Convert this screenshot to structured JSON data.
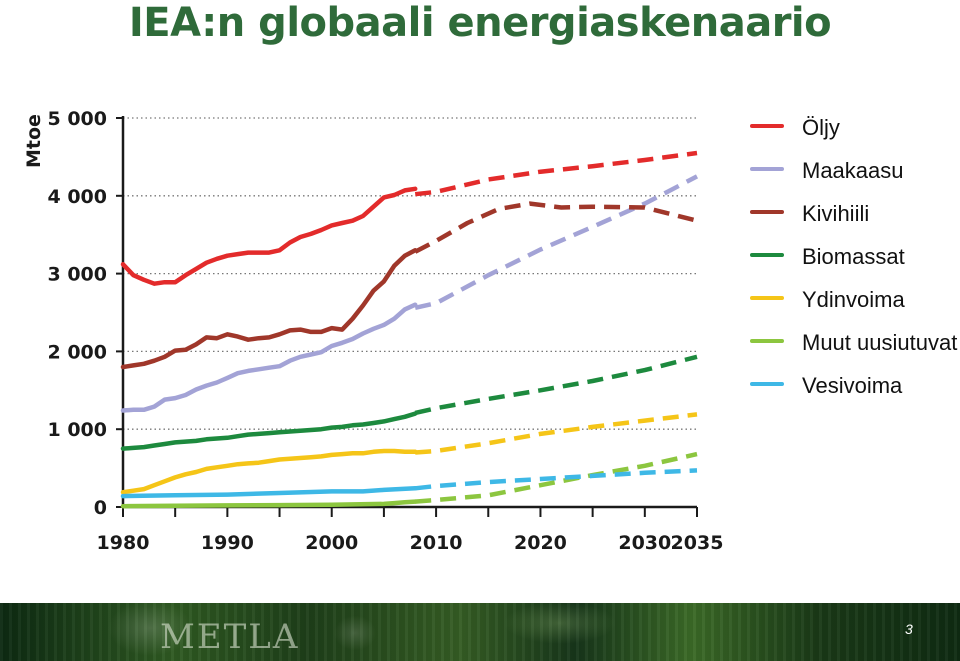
{
  "slide": {
    "title": "IEA:n globaali energiaskenaario",
    "logo_text": "METLA",
    "page_number": "3"
  },
  "chart_data": {
    "type": "line",
    "title": "IEA:n globaali energiaskenaario",
    "xlabel": "",
    "ylabel": "Mtoe",
    "xlim": [
      1980,
      2035
    ],
    "ylim": [
      0,
      5000
    ],
    "xticks": [
      1980,
      1990,
      2000,
      2010,
      2020,
      2030,
      2035
    ],
    "xtick_labels": [
      "1980",
      "1990",
      "2000",
      "2010",
      "2020",
      "2030",
      "2035"
    ],
    "yticks": [
      0,
      1000,
      2000,
      3000,
      4000,
      5000
    ],
    "ytick_labels": [
      "0",
      "1 000",
      "2 000",
      "3 000",
      "4 000",
      "5 000"
    ],
    "grid": {
      "y_dotted": true
    },
    "legend_position": "right",
    "historical_until": 2008,
    "series": [
      {
        "name": "Öljy",
        "color": "#e32b2b",
        "historical": {
          "x": [
            1980,
            1981,
            1982,
            1983,
            1984,
            1985,
            1986,
            1987,
            1988,
            1989,
            1990,
            1991,
            1992,
            1993,
            1994,
            1995,
            1996,
            1997,
            1998,
            1999,
            2000,
            2001,
            2002,
            2003,
            2004,
            2005,
            2006,
            2007,
            2008
          ],
          "y": [
            3120,
            2980,
            2920,
            2870,
            2890,
            2890,
            2980,
            3060,
            3140,
            3190,
            3230,
            3250,
            3270,
            3270,
            3270,
            3300,
            3400,
            3470,
            3510,
            3560,
            3620,
            3650,
            3680,
            3740,
            3860,
            3980,
            4010,
            4070,
            4090
          ]
        },
        "projection": {
          "x": [
            2008,
            2010,
            2015,
            2020,
            2025,
            2030,
            2035
          ],
          "y": [
            4020,
            4050,
            4210,
            4310,
            4380,
            4460,
            4550
          ]
        }
      },
      {
        "name": "Maakaasu",
        "color": "#a3a3d6",
        "historical": {
          "x": [
            1980,
            1981,
            1982,
            1983,
            1984,
            1985,
            1986,
            1987,
            1988,
            1989,
            1990,
            1991,
            1992,
            1993,
            1994,
            1995,
            1996,
            1997,
            1998,
            1999,
            2000,
            2001,
            2002,
            2003,
            2004,
            2005,
            2006,
            2007,
            2008
          ],
          "y": [
            1240,
            1250,
            1250,
            1290,
            1380,
            1400,
            1440,
            1510,
            1560,
            1600,
            1660,
            1720,
            1750,
            1770,
            1790,
            1810,
            1880,
            1930,
            1960,
            1990,
            2070,
            2110,
            2160,
            2230,
            2290,
            2340,
            2420,
            2540,
            2600
          ]
        },
        "projection": {
          "x": [
            2008,
            2010,
            2015,
            2020,
            2025,
            2030,
            2035
          ],
          "y": [
            2560,
            2620,
            2980,
            3310,
            3600,
            3900,
            4250
          ]
        }
      },
      {
        "name": "Kivihiili",
        "color": "#a0372a",
        "historical": {
          "x": [
            1980,
            1981,
            1982,
            1983,
            1984,
            1985,
            1986,
            1987,
            1988,
            1989,
            1990,
            1991,
            1992,
            1993,
            1994,
            1995,
            1996,
            1997,
            1998,
            1999,
            2000,
            2001,
            2002,
            2003,
            2004,
            2005,
            2006,
            2007,
            2008
          ],
          "y": [
            1800,
            1820,
            1840,
            1880,
            1930,
            2010,
            2020,
            2090,
            2180,
            2170,
            2220,
            2190,
            2150,
            2170,
            2180,
            2220,
            2270,
            2280,
            2250,
            2250,
            2300,
            2280,
            2420,
            2590,
            2780,
            2900,
            3100,
            3230,
            3300
          ]
        },
        "projection": {
          "x": [
            2008,
            2010,
            2013,
            2016,
            2019,
            2022,
            2025,
            2030,
            2035
          ],
          "y": [
            3280,
            3420,
            3650,
            3830,
            3900,
            3850,
            3860,
            3850,
            3680
          ]
        }
      },
      {
        "name": "Biomassat",
        "color": "#1d8a3e",
        "historical": {
          "x": [
            1980,
            1981,
            1982,
            1983,
            1984,
            1985,
            1986,
            1987,
            1988,
            1989,
            1990,
            1991,
            1992,
            1993,
            1994,
            1995,
            1996,
            1997,
            1998,
            1999,
            2000,
            2001,
            2002,
            2003,
            2004,
            2005,
            2006,
            2007,
            2008
          ],
          "y": [
            750,
            760,
            770,
            790,
            810,
            830,
            840,
            850,
            870,
            880,
            890,
            910,
            930,
            940,
            950,
            960,
            970,
            980,
            990,
            1000,
            1020,
            1030,
            1050,
            1060,
            1080,
            1100,
            1130,
            1160,
            1200
          ]
        },
        "projection": {
          "x": [
            2008,
            2010,
            2015,
            2020,
            2025,
            2030,
            2035
          ],
          "y": [
            1210,
            1270,
            1390,
            1500,
            1620,
            1760,
            1930
          ]
        }
      },
      {
        "name": "Ydinvoima",
        "color": "#f5c518",
        "historical": {
          "x": [
            1980,
            1981,
            1982,
            1983,
            1984,
            1985,
            1986,
            1987,
            1988,
            1989,
            1990,
            1991,
            1992,
            1993,
            1994,
            1995,
            1996,
            1997,
            1998,
            1999,
            2000,
            2001,
            2002,
            2003,
            2004,
            2005,
            2006,
            2007,
            2008
          ],
          "y": [
            190,
            210,
            230,
            280,
            330,
            380,
            420,
            450,
            490,
            510,
            530,
            550,
            560,
            570,
            590,
            610,
            620,
            630,
            640,
            650,
            670,
            680,
            690,
            690,
            710,
            720,
            720,
            710,
            710
          ]
        },
        "projection": {
          "x": [
            2008,
            2010,
            2015,
            2020,
            2025,
            2030,
            2035
          ],
          "y": [
            700,
            720,
            820,
            940,
            1030,
            1110,
            1190
          ]
        }
      },
      {
        "name": "Muut uusiutuvat",
        "color": "#8cc63f",
        "historical": {
          "x": [
            1980,
            1985,
            1990,
            1995,
            2000,
            2005,
            2006,
            2007,
            2008
          ],
          "y": [
            10,
            15,
            20,
            25,
            30,
            40,
            50,
            60,
            70
          ]
        },
        "projection": {
          "x": [
            2008,
            2010,
            2015,
            2020,
            2025,
            2030,
            2035
          ],
          "y": [
            70,
            90,
            150,
            280,
            410,
            530,
            680
          ]
        }
      },
      {
        "name": "Vesivoima",
        "color": "#3eb8e6",
        "historical": {
          "x": [
            1980,
            1985,
            1990,
            1995,
            2000,
            2003,
            2005,
            2008
          ],
          "y": [
            140,
            150,
            160,
            180,
            200,
            200,
            220,
            240
          ]
        },
        "projection": {
          "x": [
            2008,
            2010,
            2015,
            2020,
            2025,
            2030,
            2035
          ],
          "y": [
            240,
            270,
            320,
            360,
            400,
            440,
            470
          ]
        }
      }
    ]
  }
}
